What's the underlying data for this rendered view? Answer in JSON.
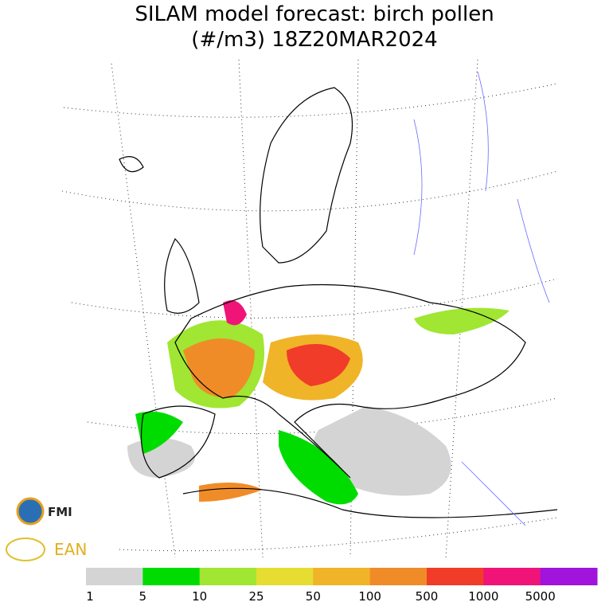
{
  "title": [
    "SILAM model forecast: birch pollen",
    "(#/m3) 18Z20MAR2024"
  ],
  "legend": {
    "colors": [
      "#d4d4d4",
      "#00dc00",
      "#a0e632",
      "#e6dc32",
      "#f0b428",
      "#f08c28",
      "#f03c28",
      "#f01478",
      "#a014dc"
    ],
    "labels": [
      "1",
      "5",
      "10",
      "25",
      "50",
      "100",
      "500",
      "1000",
      "5000"
    ]
  },
  "logos": [
    "FMI",
    "EAN"
  ]
}
